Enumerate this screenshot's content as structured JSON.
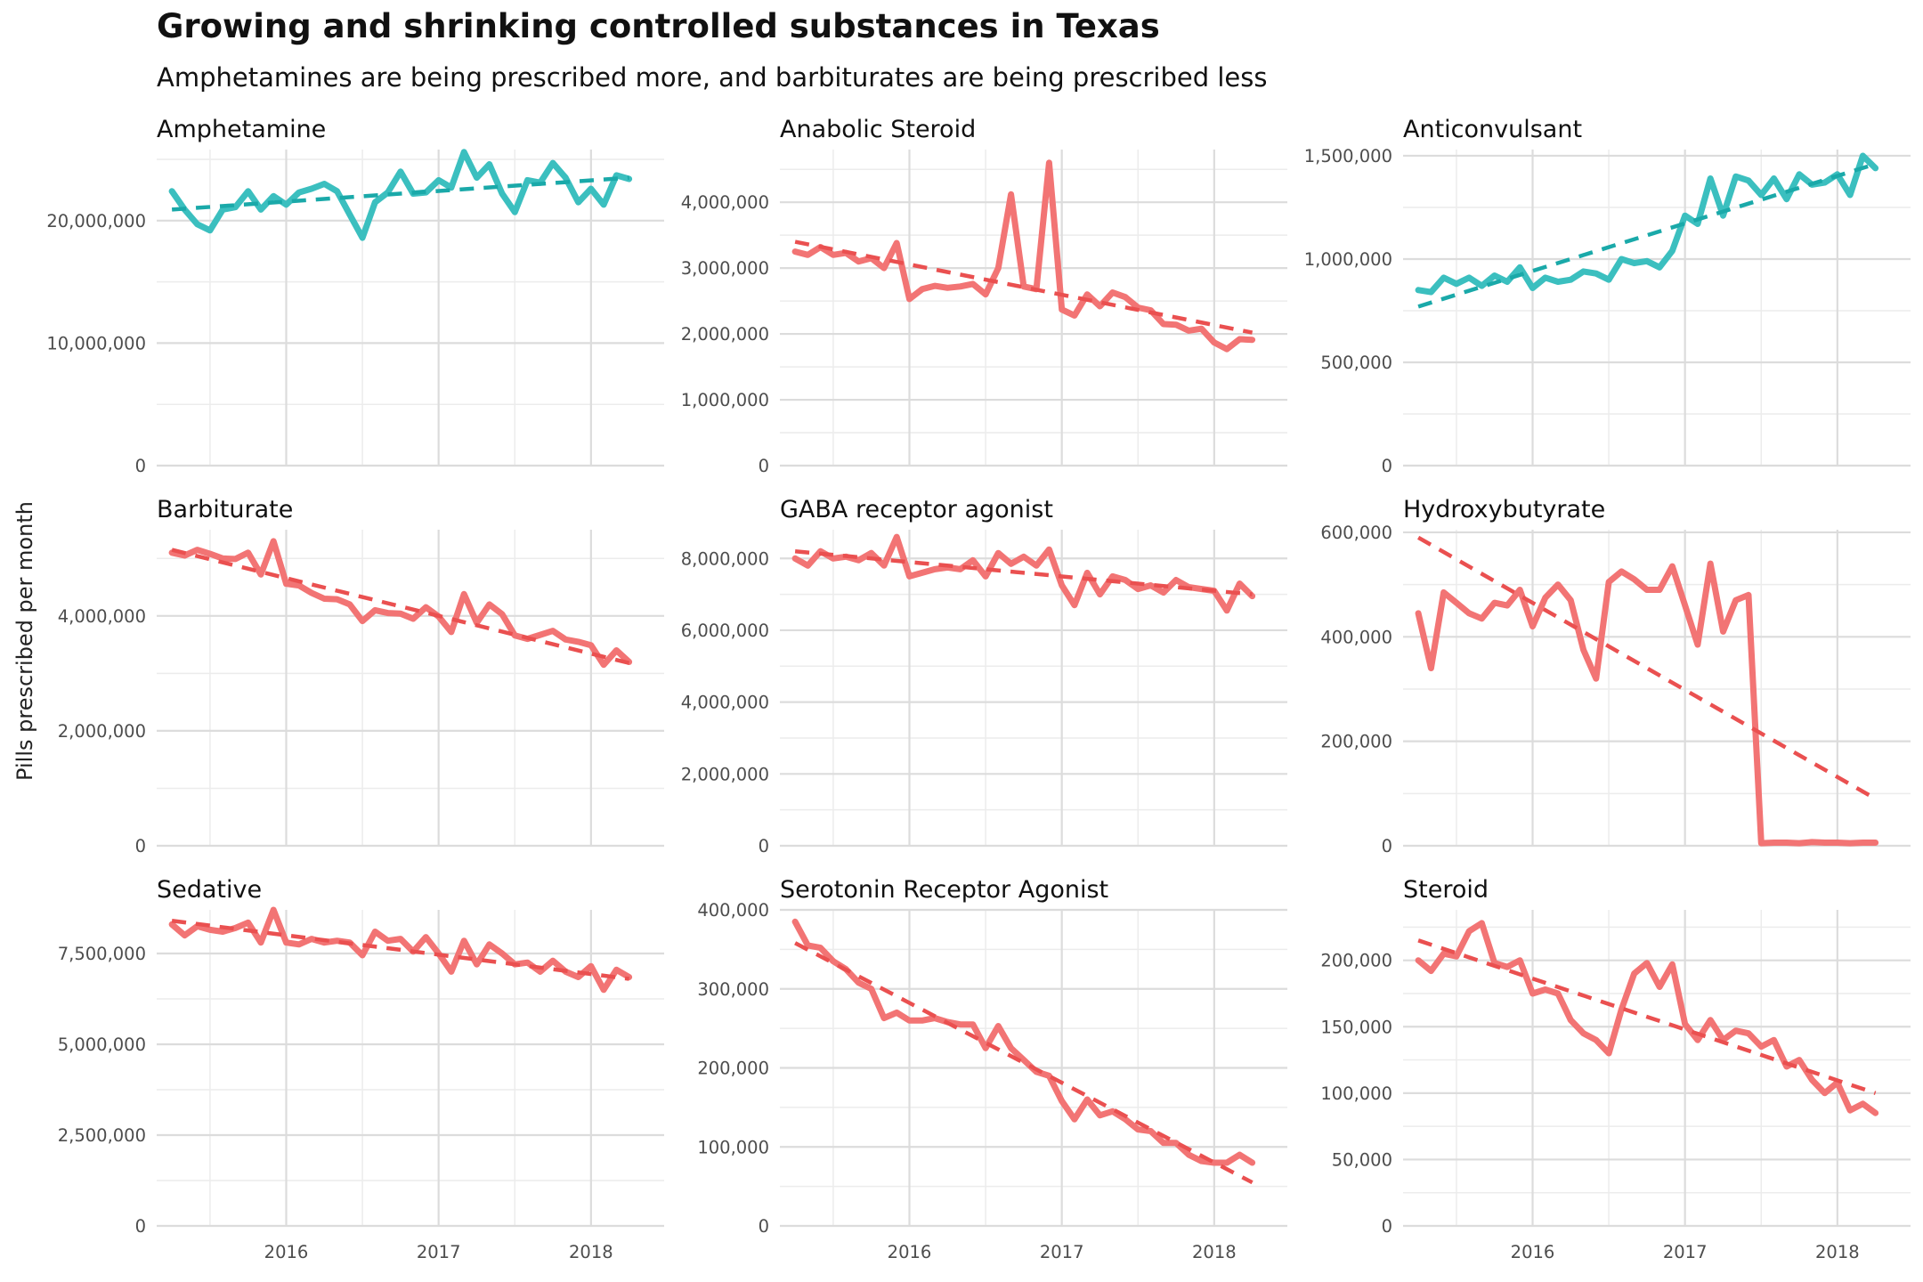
{
  "title": "Growing and shrinking controlled substances in Texas",
  "subtitle": "Amphetamines are being prescribed more, and barbiturates are being prescribed less",
  "ylabel": "Pills prescribed per month",
  "colors": {
    "growing": "#3bbfbf",
    "shrinking": "#f27474",
    "growing_trend": "#1aa9a9",
    "shrinking_trend": "#ea5050"
  },
  "chart_data": [
    {
      "type": "line",
      "title": "Amphetamine",
      "trend": "growing",
      "xlabel": "",
      "ylabel": "Pills prescribed per month",
      "ylim": [
        0,
        25800000
      ],
      "yticks": [
        0,
        10000000,
        20000000
      ],
      "ytick_labels": [
        "0",
        "10,000,000",
        "20,000,000"
      ],
      "xticks": [
        2016,
        2017,
        2018
      ],
      "xtick_labels": [
        "2016",
        "2017",
        "2018"
      ],
      "xlim": [
        2015.15,
        2018.48
      ],
      "x_start": 2015.25,
      "trendline": [
        20900000,
        23500000
      ],
      "values": [
        22400000,
        20900000,
        19700000,
        19200000,
        20900000,
        21100000,
        22400000,
        20900000,
        22000000,
        21300000,
        22300000,
        22600000,
        23000000,
        22400000,
        20500000,
        18600000,
        21500000,
        22300000,
        24000000,
        22200000,
        22300000,
        23300000,
        22700000,
        25600000,
        23500000,
        24600000,
        22200000,
        20700000,
        23300000,
        23100000,
        24700000,
        23500000,
        21500000,
        22600000,
        21300000,
        23700000,
        23400000
      ]
    },
    {
      "type": "line",
      "title": "Anabolic Steroid",
      "trend": "shrinking",
      "xlabel": "",
      "ylabel": "Pills prescribed per month",
      "ylim": [
        0,
        4800000
      ],
      "yticks": [
        0,
        1000000,
        2000000,
        3000000,
        4000000
      ],
      "ytick_labels": [
        "0",
        "1,000,000",
        "2,000,000",
        "3,000,000",
        "4,000,000"
      ],
      "xticks": [
        2016,
        2017,
        2018
      ],
      "xtick_labels": [
        "2016",
        "2017",
        "2018"
      ],
      "xlim": [
        2015.15,
        2018.48
      ],
      "x_start": 2015.25,
      "trendline": [
        3400000,
        2020000
      ],
      "values": [
        3250000,
        3200000,
        3320000,
        3200000,
        3230000,
        3100000,
        3150000,
        3000000,
        3380000,
        2530000,
        2680000,
        2730000,
        2700000,
        2720000,
        2760000,
        2600000,
        3000000,
        4120000,
        2720000,
        2680000,
        4600000,
        2370000,
        2280000,
        2600000,
        2420000,
        2630000,
        2560000,
        2400000,
        2360000,
        2150000,
        2140000,
        2050000,
        2080000,
        1870000,
        1770000,
        1920000,
        1910000
      ]
    },
    {
      "type": "line",
      "title": "Anticonvulsant",
      "trend": "growing",
      "xlabel": "",
      "ylabel": "Pills prescribed per month",
      "ylim": [
        0,
        1530000
      ],
      "yticks": [
        0,
        500000,
        1000000,
        1500000
      ],
      "ytick_labels": [
        "0",
        "500,000",
        "1,000,000",
        "1,500,000"
      ],
      "xticks": [
        2016,
        2017,
        2018
      ],
      "xtick_labels": [
        "2016",
        "2017",
        "2018"
      ],
      "xlim": [
        2015.15,
        2018.48
      ],
      "x_start": 2015.25,
      "trendline": [
        770000,
        1460000
      ],
      "values": [
        850000,
        840000,
        910000,
        880000,
        910000,
        870000,
        920000,
        890000,
        960000,
        860000,
        910000,
        890000,
        900000,
        940000,
        930000,
        900000,
        1000000,
        980000,
        990000,
        960000,
        1040000,
        1210000,
        1170000,
        1390000,
        1210000,
        1400000,
        1380000,
        1310000,
        1390000,
        1290000,
        1410000,
        1360000,
        1370000,
        1410000,
        1310000,
        1500000,
        1440000
      ]
    },
    {
      "type": "line",
      "title": "Barbiturate",
      "trend": "shrinking",
      "xlabel": "",
      "ylabel": "Pills prescribed per month",
      "ylim": [
        0,
        5500000
      ],
      "yticks": [
        0,
        2000000,
        4000000
      ],
      "ytick_labels": [
        "0",
        "2,000,000",
        "4,000,000"
      ],
      "xticks": [
        2016,
        2017,
        2018
      ],
      "xtick_labels": [
        "2016",
        "2017",
        "2018"
      ],
      "xlim": [
        2015.15,
        2018.48
      ],
      "x_start": 2015.25,
      "trendline": [
        5150000,
        3180000
      ],
      "values": [
        5100000,
        5050000,
        5150000,
        5080000,
        5000000,
        4990000,
        5100000,
        4720000,
        5300000,
        4560000,
        4530000,
        4400000,
        4300000,
        4290000,
        4200000,
        3910000,
        4100000,
        4050000,
        4040000,
        3950000,
        4150000,
        3990000,
        3720000,
        4380000,
        3880000,
        4200000,
        4030000,
        3660000,
        3600000,
        3670000,
        3740000,
        3590000,
        3550000,
        3490000,
        3150000,
        3400000,
        3200000
      ]
    },
    {
      "type": "line",
      "title": "GABA receptor agonist",
      "trend": "shrinking",
      "xlabel": "",
      "ylabel": "Pills prescribed per month",
      "ylim": [
        0,
        8800000
      ],
      "yticks": [
        0,
        2000000,
        4000000,
        6000000,
        8000000
      ],
      "ytick_labels": [
        "0",
        "2,000,000",
        "4,000,000",
        "6,000,000",
        "8,000,000"
      ],
      "xticks": [
        2016,
        2017,
        2018
      ],
      "xtick_labels": [
        "2016",
        "2017",
        "2018"
      ],
      "xlim": [
        2015.15,
        2018.48
      ],
      "x_start": 2015.25,
      "trendline": [
        8200000,
        7000000
      ],
      "values": [
        8000000,
        7800000,
        8200000,
        8000000,
        8050000,
        7950000,
        8150000,
        7800000,
        8600000,
        7500000,
        7600000,
        7700000,
        7750000,
        7700000,
        7950000,
        7500000,
        8150000,
        7850000,
        8050000,
        7800000,
        8250000,
        7250000,
        6700000,
        7600000,
        7000000,
        7500000,
        7400000,
        7150000,
        7250000,
        7050000,
        7400000,
        7200000,
        7150000,
        7100000,
        6550000,
        7300000,
        6950000
      ]
    },
    {
      "type": "line",
      "title": "Hydroxybutyrate",
      "trend": "shrinking",
      "xlabel": "",
      "ylabel": "Pills prescribed per month",
      "ylim": [
        0,
        605000
      ],
      "yticks": [
        0,
        200000,
        400000,
        600000
      ],
      "ytick_labels": [
        "0",
        "200,000",
        "400,000",
        "600,000"
      ],
      "xticks": [
        2016,
        2017,
        2018
      ],
      "xtick_labels": [
        "2016",
        "2017",
        "2018"
      ],
      "xlim": [
        2015.15,
        2018.48
      ],
      "x_start": 2015.25,
      "trendline": [
        590000,
        90000
      ],
      "values": [
        445000,
        340000,
        485000,
        465000,
        445000,
        435000,
        465000,
        460000,
        490000,
        420000,
        475000,
        500000,
        470000,
        375000,
        320000,
        505000,
        525000,
        510000,
        490000,
        490000,
        535000,
        460000,
        385000,
        540000,
        410000,
        470000,
        480000,
        5000,
        6000,
        6000,
        5000,
        7000,
        6000,
        6000,
        5000,
        6000,
        6000
      ]
    },
    {
      "type": "line",
      "title": "Sedative",
      "trend": "shrinking",
      "xlabel": "",
      "ylabel": "Pills prescribed per month",
      "ylim": [
        0,
        8700000
      ],
      "yticks": [
        0,
        2500000,
        5000000,
        7500000
      ],
      "ytick_labels": [
        "0",
        "2,500,000",
        "5,000,000",
        "7,500,000"
      ],
      "xticks": [
        2016,
        2017,
        2018
      ],
      "xtick_labels": [
        "2016",
        "2017",
        "2018"
      ],
      "xlim": [
        2015.15,
        2018.48
      ],
      "x_start": 2015.25,
      "trendline": [
        8400000,
        6800000
      ],
      "values": [
        8300000,
        8000000,
        8250000,
        8150000,
        8100000,
        8200000,
        8350000,
        7800000,
        8700000,
        7800000,
        7750000,
        7900000,
        7800000,
        7850000,
        7800000,
        7450000,
        8100000,
        7850000,
        7900000,
        7550000,
        7950000,
        7500000,
        7000000,
        7850000,
        7200000,
        7750000,
        7500000,
        7200000,
        7250000,
        7000000,
        7300000,
        7000000,
        6850000,
        7150000,
        6500000,
        7050000,
        6850000
      ]
    },
    {
      "type": "line",
      "title": "Serotonin Receptor Agonist",
      "trend": "shrinking",
      "xlabel": "",
      "ylabel": "Pills prescribed per month",
      "ylim": [
        0,
        400000
      ],
      "yticks": [
        0,
        100000,
        200000,
        300000,
        400000
      ],
      "ytick_labels": [
        "0",
        "100,000",
        "200,000",
        "300,000",
        "400,000"
      ],
      "xticks": [
        2016,
        2017,
        2018
      ],
      "xtick_labels": [
        "2016",
        "2017",
        "2018"
      ],
      "xlim": [
        2015.15,
        2018.48
      ],
      "x_start": 2015.25,
      "trendline": [
        358000,
        55000
      ],
      "values": [
        385000,
        355000,
        352000,
        335000,
        325000,
        308000,
        300000,
        263000,
        270000,
        260000,
        260000,
        263000,
        258000,
        255000,
        255000,
        225000,
        253000,
        225000,
        210000,
        195000,
        190000,
        158000,
        135000,
        160000,
        140000,
        145000,
        135000,
        122000,
        120000,
        105000,
        105000,
        90000,
        82000,
        80000,
        80000,
        90000,
        80000
      ]
    },
    {
      "type": "line",
      "title": "Steroid",
      "trend": "shrinking",
      "xlabel": "",
      "ylabel": "Pills prescribed per month",
      "ylim": [
        0,
        238000
      ],
      "yticks": [
        0,
        50000,
        100000,
        150000,
        200000
      ],
      "ytick_labels": [
        "0",
        "50,000",
        "100,000",
        "150,000",
        "200,000"
      ],
      "xticks": [
        2016,
        2017,
        2018
      ],
      "xtick_labels": [
        "2016",
        "2017",
        "2018"
      ],
      "xlim": [
        2015.15,
        2018.48
      ],
      "x_start": 2015.25,
      "trendline": [
        215000,
        100000
      ],
      "values": [
        200000,
        192000,
        205000,
        203000,
        222000,
        228000,
        198000,
        195000,
        200000,
        175000,
        178000,
        175000,
        155000,
        145000,
        140000,
        130000,
        163000,
        190000,
        198000,
        180000,
        197000,
        152000,
        140000,
        155000,
        140000,
        147000,
        145000,
        135000,
        140000,
        120000,
        125000,
        110000,
        100000,
        108000,
        87000,
        92000,
        85000
      ]
    }
  ]
}
